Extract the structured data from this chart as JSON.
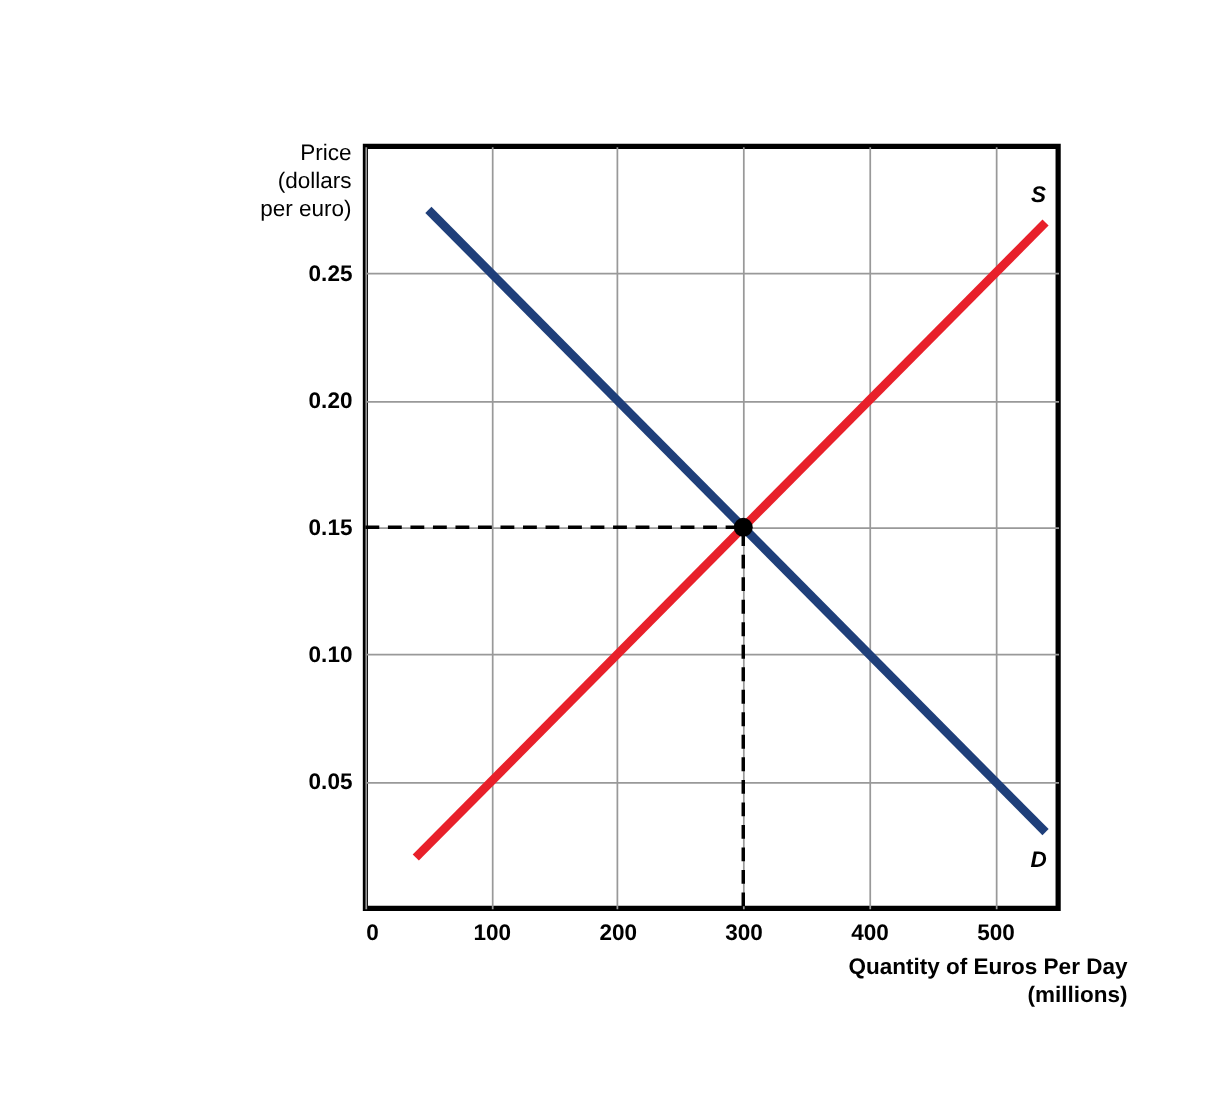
{
  "chart_data": {
    "type": "line",
    "xlabel": "Quantity of Euros Per Day\n(millions)",
    "ylabel": "Price\n(dollars\nper euro)",
    "xlim": [
      0,
      550
    ],
    "ylim": [
      0,
      0.3
    ],
    "xticks": [
      0,
      100,
      200,
      300,
      400,
      500
    ],
    "yticks": [
      0.05,
      {
        "value": 0.1,
        "label": "0.10"
      },
      0.15,
      {
        "value": 0.2,
        "label": "0.20"
      },
      0.25
    ],
    "grid": true,
    "series": [
      {
        "name": "S",
        "color": "#e8202a",
        "x": [
          40,
          540
        ],
        "values": [
          0.02,
          0.27
        ]
      },
      {
        "name": "D",
        "color": "#1f3f7a",
        "x": [
          50,
          540
        ],
        "values": [
          0.275,
          0.03
        ]
      },
      {
        "type": "line",
        "line_style": "dashed",
        "color": "#000000",
        "x": [
          0,
          300,
          300
        ],
        "values": [
          0.15,
          0.15,
          0
        ]
      },
      {
        "type": "scatter",
        "marker": "circle",
        "color": "#000000",
        "x": [
          300
        ],
        "values": [
          0.15
        ]
      }
    ]
  }
}
